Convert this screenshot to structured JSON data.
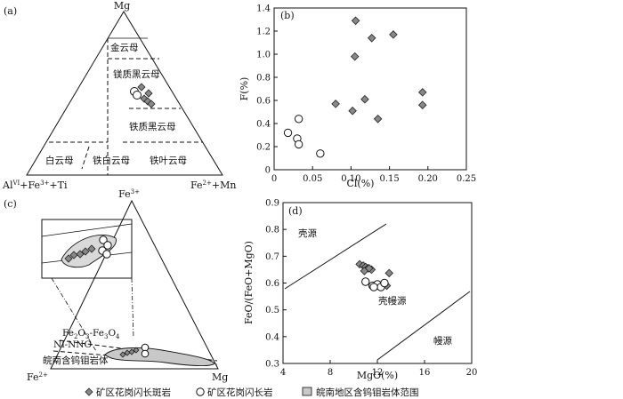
{
  "panel_a": {
    "label": "(a)",
    "apex_top": "Mg",
    "apex_left_prefix": "Al",
    "apex_left_sup": "VI",
    "apex_left_suffix": "+Fe",
    "apex_left_sup2": "3+",
    "apex_left_tail": "+Ti",
    "apex_right_prefix": "Fe",
    "apex_right_sup": "2+",
    "apex_right_tail": "+Mn",
    "fields": [
      "金云母",
      "镁质黑云母",
      "铁质黑云母",
      "白云母",
      "铁白云母",
      "铁叶云母"
    ]
  },
  "panel_b": {
    "label": "(b)",
    "xlabel": "Cl(%)",
    "ylabel": "F(%)",
    "xticks": [
      "0",
      "0.05",
      "0.10",
      "0.15",
      "0.20",
      "0.25"
    ],
    "yticks": [
      "0",
      "0.2",
      "0.4",
      "0.6",
      "0.8",
      "1.0",
      "1.2",
      "1.4"
    ]
  },
  "panel_c": {
    "label": "(c)",
    "apex_top": "Fe",
    "apex_top_sup": "3+",
    "apex_left": "Fe",
    "apex_left_sup": "2+",
    "apex_right": "Mg",
    "buffer1_a": "Fe",
    "buffer1_a_sub": "2",
    "buffer1_b": "O",
    "buffer1_b_sub": "3",
    "buffer1_c": "-Fe",
    "buffer1_c_sub": "3",
    "buffer1_d": "O",
    "buffer1_d_sub": "4",
    "buffer2": "Ni-NNO",
    "field_label": "皖南含钨钼岩体"
  },
  "panel_d": {
    "label": "(d)",
    "xlabel": "MgO(%)",
    "ylabel": "FeO/(FeO+MgO)",
    "xticks": [
      "4",
      "8",
      "12",
      "16",
      "20"
    ],
    "yticks": [
      "0.3",
      "0.4",
      "0.5",
      "0.6",
      "0.7",
      "0.8",
      "0.9"
    ],
    "fields": [
      "壳源",
      "壳幔源",
      "幔源"
    ]
  },
  "legend": {
    "items": [
      "矿区花岗闪长斑岩",
      "矿区花岗闪长岩",
      "皖南地区含钨钼岩体范围"
    ]
  },
  "chart_data": [
    {
      "type": "scatter",
      "title": "",
      "xlabel": "Cl(%)",
      "ylabel": "F(%)",
      "xlim": [
        0,
        0.25
      ],
      "ylim": [
        0,
        1.4
      ],
      "series": [
        {
          "name": "矿区花岗闪长斑岩",
          "marker": "diamond",
          "x": [
            0.106,
            0.105,
            0.127,
            0.155,
            0.08,
            0.118,
            0.102,
            0.135,
            0.193,
            0.193
          ],
          "y": [
            1.29,
            0.98,
            1.14,
            1.17,
            0.57,
            0.61,
            0.51,
            0.44,
            0.67,
            0.56
          ]
        },
        {
          "name": "矿区花岗闪长岩",
          "marker": "circle",
          "x": [
            0.032,
            0.018,
            0.03,
            0.032,
            0.06
          ],
          "y": [
            0.44,
            0.32,
            0.27,
            0.22,
            0.14
          ]
        }
      ]
    },
    {
      "type": "scatter",
      "title": "",
      "xlabel": "MgO(%)",
      "ylabel": "FeO/(FeO+MgO)",
      "xlim": [
        4,
        20
      ],
      "ylim": [
        0.3,
        0.9
      ],
      "series": [
        {
          "name": "矿区花岗闪长斑岩",
          "marker": "diamond",
          "x": [
            10.5,
            10.8,
            11.0,
            11.2,
            11.5,
            10.9,
            11.3,
            13.0,
            12.8
          ],
          "y": [
            0.67,
            0.665,
            0.66,
            0.655,
            0.65,
            0.645,
            0.655,
            0.637,
            0.59
          ]
        },
        {
          "name": "矿区花岗闪长岩",
          "marker": "circle",
          "x": [
            11.0,
            11.6,
            12.0,
            12.3,
            12.6,
            11.7
          ],
          "y": [
            0.605,
            0.59,
            0.595,
            0.585,
            0.6,
            0.585
          ]
        }
      ]
    }
  ]
}
